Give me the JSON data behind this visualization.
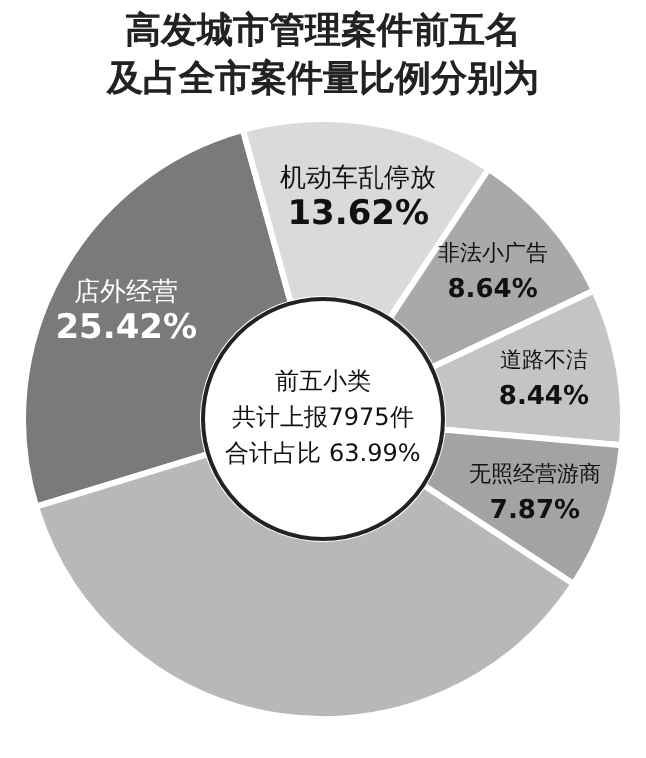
{
  "chart_data": {
    "type": "donut",
    "title": "高发城市管理案件前五名及占全市案件量比例分别为",
    "categories": [
      "店外经营",
      "机动车乱停放",
      "非法小广告",
      "道路不洁",
      "无照经营游商",
      null
    ],
    "values": [
      25.42,
      13.62,
      8.64,
      8.44,
      7.87,
      36.01
    ],
    "value_labels": [
      "25.42%",
      "13.62%",
      "8.64%",
      "8.44%",
      "7.87%",
      null
    ],
    "colors": [
      "#7a7a7a",
      "#dadada",
      "#a9a9a9",
      "#c4c4c4",
      "#a3a3a3",
      "#b8b8b8"
    ],
    "annotations": [
      "前五小类",
      "共计上报7975件",
      "合计占比 63.99%"
    ],
    "legend": false
  }
}
